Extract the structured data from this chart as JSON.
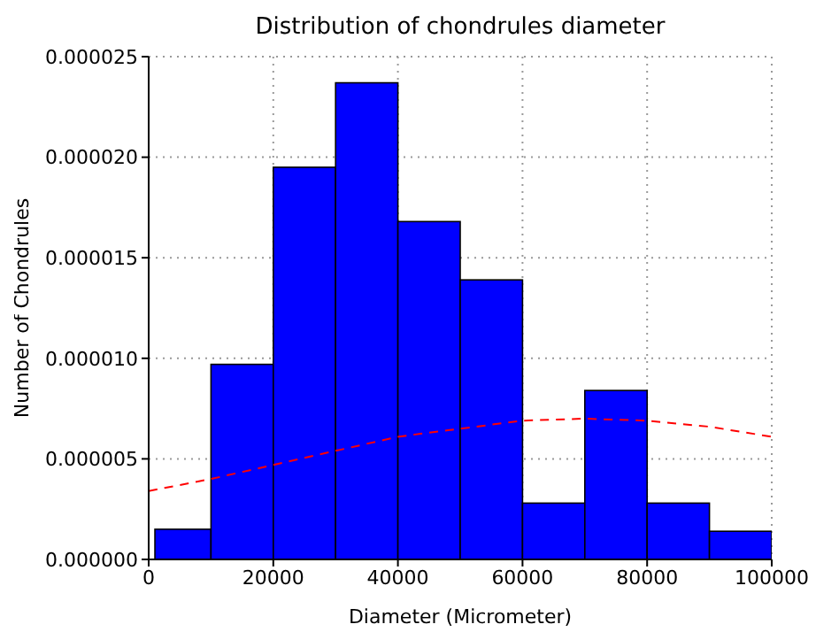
{
  "chart_data": {
    "type": "histogram",
    "title": "Distribution of chondrules diameter",
    "xlabel": "Diameter (Micrometer)",
    "ylabel": "Number of Chondrules",
    "bins": [
      1000,
      10000,
      20000,
      30000,
      40000,
      50000,
      60000,
      70000,
      80000,
      90000,
      100000
    ],
    "values": [
      1.5e-06,
      9.7e-06,
      1.95e-05,
      2.37e-05,
      1.68e-05,
      1.39e-05,
      2.8e-06,
      8.4e-06,
      2.8e-06,
      1.4e-06
    ],
    "color": "#0000ff",
    "series": [
      {
        "type": "line",
        "color": "#ff0000",
        "line_style": "dashed",
        "x": [
          0,
          10000,
          20000,
          30000,
          40000,
          50000,
          60000,
          70000,
          80000,
          90000,
          100000
        ],
        "values": [
          3.4e-06,
          4e-06,
          4.7e-06,
          5.4e-06,
          6.1e-06,
          6.5e-06,
          6.9e-06,
          7e-06,
          6.9e-06,
          6.6e-06,
          6.1e-06
        ]
      }
    ],
    "xlim": [
      0,
      100000
    ],
    "xticks": [
      0,
      20000,
      40000,
      60000,
      80000,
      100000
    ],
    "ylim": [
      0,
      2.5e-05
    ],
    "yticks": [
      {
        "value": 0,
        "label": "0.000000"
      },
      {
        "value": 5e-06,
        "label": "0.000005"
      },
      {
        "value": 1e-05,
        "label": "0.000010"
      },
      {
        "value": 1.5e-05,
        "label": "0.000015"
      },
      {
        "value": 2e-05,
        "label": "0.000020"
      },
      {
        "value": 2.5e-05,
        "label": "0.000025"
      }
    ],
    "grid": true
  }
}
